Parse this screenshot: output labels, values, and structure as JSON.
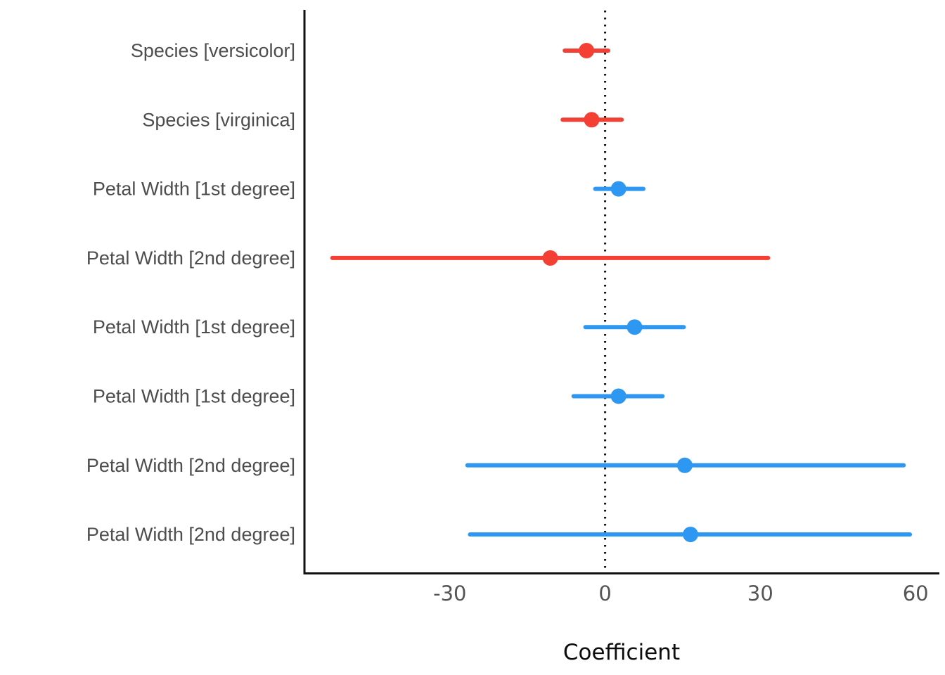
{
  "chart_data": {
    "type": "pointrange",
    "title": "",
    "xlabel": "Coefficient",
    "xlim": [
      -58.1,
      64.6
    ],
    "xticks": [
      -30,
      0,
      30,
      60
    ],
    "zero_line": 0,
    "grid": false,
    "legend": "none",
    "colors": {
      "positive": "#2e97f2",
      "negative": "#f44034",
      "axis_line": "#111111",
      "zero_line": "#111111",
      "row_label": "#4d4d4d",
      "tick_label": "#555555",
      "axis_title": "#0d0d0d"
    },
    "rows": [
      {
        "label": "Species [versicolor]",
        "estimate": -3.6,
        "ci_low": -7.8,
        "ci_high": 0.6,
        "direction": "negative"
      },
      {
        "label": "Species [virginica]",
        "estimate": -2.6,
        "ci_low": -8.2,
        "ci_high": 3.2,
        "direction": "negative"
      },
      {
        "label": "Petal Width [1st degree]",
        "estimate": 2.6,
        "ci_low": -1.9,
        "ci_high": 7.4,
        "direction": "positive"
      },
      {
        "label": "Petal Width [2nd degree]",
        "estimate": -10.6,
        "ci_low": -52.7,
        "ci_high": 31.5,
        "direction": "negative"
      },
      {
        "label": "Petal Width [1st degree]",
        "estimate": 5.7,
        "ci_low": -3.8,
        "ci_high": 15.2,
        "direction": "positive"
      },
      {
        "label": "Petal Width [1st degree]",
        "estimate": 2.6,
        "ci_low": -6.1,
        "ci_high": 11.1,
        "direction": "positive"
      },
      {
        "label": "Petal Width [2nd degree]",
        "estimate": 15.4,
        "ci_low": -26.6,
        "ci_high": 57.7,
        "direction": "positive"
      },
      {
        "label": "Petal Width [2nd degree]",
        "estimate": 16.5,
        "ci_low": -26.1,
        "ci_high": 58.9,
        "direction": "positive"
      }
    ]
  }
}
